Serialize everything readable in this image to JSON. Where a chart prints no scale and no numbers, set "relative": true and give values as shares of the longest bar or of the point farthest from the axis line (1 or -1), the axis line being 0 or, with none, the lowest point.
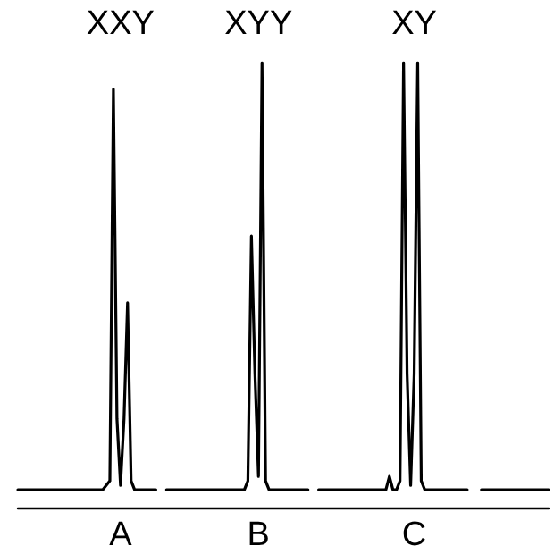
{
  "chart_data": {
    "type": "line",
    "relative": true,
    "marker": "none",
    "line_style": "solid",
    "categories": [
      null,
      null,
      null,
      null,
      null,
      null,
      null,
      null,
      null,
      null,
      null,
      null,
      null,
      null,
      null,
      null,
      null,
      null,
      null,
      null,
      null,
      null,
      null,
      null,
      null,
      null,
      null,
      null,
      null,
      "A",
      null,
      null,
      null,
      null,
      null,
      null,
      null,
      null,
      null,
      null,
      null,
      null,
      null,
      null,
      null,
      null,
      null,
      null,
      null,
      null,
      null,
      null,
      null,
      null,
      null,
      null,
      null,
      null,
      null,
      null,
      null,
      null,
      null,
      null,
      null,
      null,
      null,
      null,
      "B",
      null,
      null,
      null,
      null,
      null,
      null,
      null,
      null,
      null,
      null,
      null,
      null,
      null,
      null,
      null,
      null,
      null,
      null,
      null,
      null,
      null,
      null,
      null,
      null,
      null,
      null,
      null,
      null,
      null,
      null,
      null,
      null,
      null,
      null,
      null,
      null,
      null,
      null,
      null,
      null,
      null,
      null,
      null,
      "C",
      null,
      null,
      null,
      null,
      null,
      null,
      null,
      null,
      null,
      null,
      null,
      null,
      null,
      null,
      null,
      null,
      null,
      null,
      null,
      null,
      null,
      null,
      null,
      null,
      null,
      null,
      null,
      null,
      null,
      null,
      null,
      null,
      null,
      null,
      null,
      null,
      null,
      null
    ],
    "series": [
      {
        "color": "#000000",
        "values": [
          0.04,
          0.04,
          0.04,
          0.04,
          0.04,
          0.04,
          0.04,
          0.04,
          0.04,
          0.04,
          0.04,
          0.04,
          0.04,
          0.04,
          0.04,
          0.04,
          0.04,
          0.04,
          0.04,
          0.04,
          0.04,
          0.04,
          0.04,
          0.04,
          0.04,
          0.05,
          0.06,
          0.94,
          0.2,
          0.05,
          0.2,
          0.46,
          0.06,
          0.04,
          0.04,
          0.04,
          0.04,
          0.04,
          0.04,
          0.04,
          null,
          null,
          0.04,
          0.04,
          0.04,
          0.04,
          0.04,
          0.04,
          0.04,
          0.04,
          0.04,
          0.04,
          0.04,
          0.04,
          0.04,
          0.04,
          0.04,
          0.04,
          0.04,
          0.04,
          0.04,
          0.04,
          0.04,
          0.04,
          0.04,
          0.06,
          0.61,
          0.3,
          0.07,
          1.0,
          0.06,
          0.04,
          0.04,
          0.04,
          0.04,
          0.04,
          0.04,
          0.04,
          0.04,
          0.04,
          0.04,
          0.04,
          0.04,
          null,
          null,
          0.04,
          0.04,
          0.04,
          0.04,
          0.04,
          0.04,
          0.04,
          0.04,
          0.04,
          0.04,
          0.04,
          0.04,
          0.04,
          0.04,
          0.04,
          0.04,
          0.04,
          0.04,
          0.04,
          0.04,
          0.07,
          0.04,
          0.04,
          0.06,
          1.0,
          0.3,
          0.05,
          0.3,
          1.0,
          0.06,
          0.04,
          0.04,
          0.04,
          0.04,
          0.04,
          0.04,
          0.04,
          0.04,
          0.04,
          0.04,
          0.04,
          0.04,
          0.04,
          null,
          null,
          null,
          0.04,
          0.04,
          0.04,
          0.04,
          0.04,
          0.04,
          0.04,
          0.04,
          0.04,
          0.04,
          0.04,
          0.04,
          0.04,
          0.04,
          0.04,
          0.04,
          0.04,
          0.04,
          0.04,
          0.04
        ]
      }
    ],
    "annotations": [
      "XXY",
      "XYY",
      "XY"
    ]
  }
}
